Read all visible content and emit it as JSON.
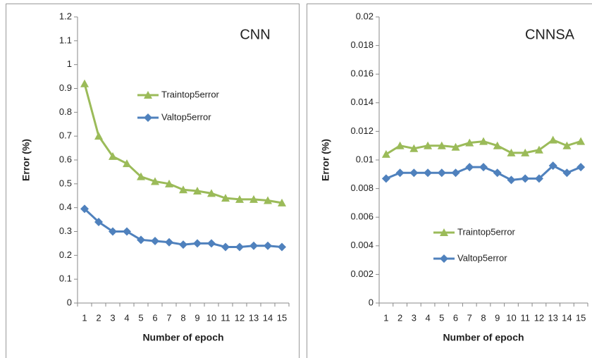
{
  "chart_data": [
    {
      "type": "line",
      "title": "CNN",
      "xlabel": "Number of epoch",
      "ylabel": "Error (%)",
      "categories": [
        "1",
        "2",
        "3",
        "4",
        "5",
        "6",
        "7",
        "8",
        "9",
        "10",
        "11",
        "12",
        "13",
        "14",
        "15"
      ],
      "series": [
        {
          "name": "Traintop5error",
          "color": "#9bbb59",
          "marker": "triangle",
          "values": [
            0.92,
            0.7,
            0.615,
            0.585,
            0.53,
            0.51,
            0.5,
            0.475,
            0.47,
            0.46,
            0.44,
            0.435,
            0.435,
            0.43,
            0.42
          ]
        },
        {
          "name": "Valtop5error",
          "color": "#4f81bd",
          "marker": "diamond",
          "values": [
            0.395,
            0.34,
            0.3,
            0.3,
            0.265,
            0.26,
            0.255,
            0.245,
            0.25,
            0.25,
            0.235,
            0.235,
            0.24,
            0.24,
            0.235
          ]
        }
      ],
      "ylim": [
        0,
        1.2
      ],
      "yticks": [
        0,
        0.1,
        0.2,
        0.3,
        0.4,
        0.5,
        0.6,
        0.7,
        0.8,
        0.9,
        1,
        1.1,
        1.2
      ],
      "grid": false
    },
    {
      "type": "line",
      "title": "CNNSA",
      "xlabel": "Number of epoch",
      "ylabel": "Error (%)",
      "categories": [
        "1",
        "2",
        "3",
        "4",
        "5",
        "6",
        "7",
        "8",
        "9",
        "10",
        "11",
        "12",
        "13",
        "14",
        "15"
      ],
      "series": [
        {
          "name": "Traintop5error",
          "color": "#9bbb59",
          "marker": "triangle",
          "values": [
            0.0104,
            0.011,
            0.0108,
            0.011,
            0.011,
            0.0109,
            0.0112,
            0.0113,
            0.011,
            0.0105,
            0.0105,
            0.0107,
            0.0114,
            0.011,
            0.0113
          ]
        },
        {
          "name": "Valtop5error",
          "color": "#4f81bd",
          "marker": "diamond",
          "values": [
            0.0087,
            0.0091,
            0.0091,
            0.0091,
            0.0091,
            0.0091,
            0.0095,
            0.0095,
            0.0091,
            0.0086,
            0.0087,
            0.0087,
            0.0096,
            0.0091,
            0.0095
          ]
        }
      ],
      "ylim": [
        0,
        0.02
      ],
      "yticks": [
        0,
        0.002,
        0.004,
        0.006,
        0.008,
        0.01,
        0.012,
        0.014,
        0.016,
        0.018,
        0.02
      ],
      "grid": false
    }
  ]
}
